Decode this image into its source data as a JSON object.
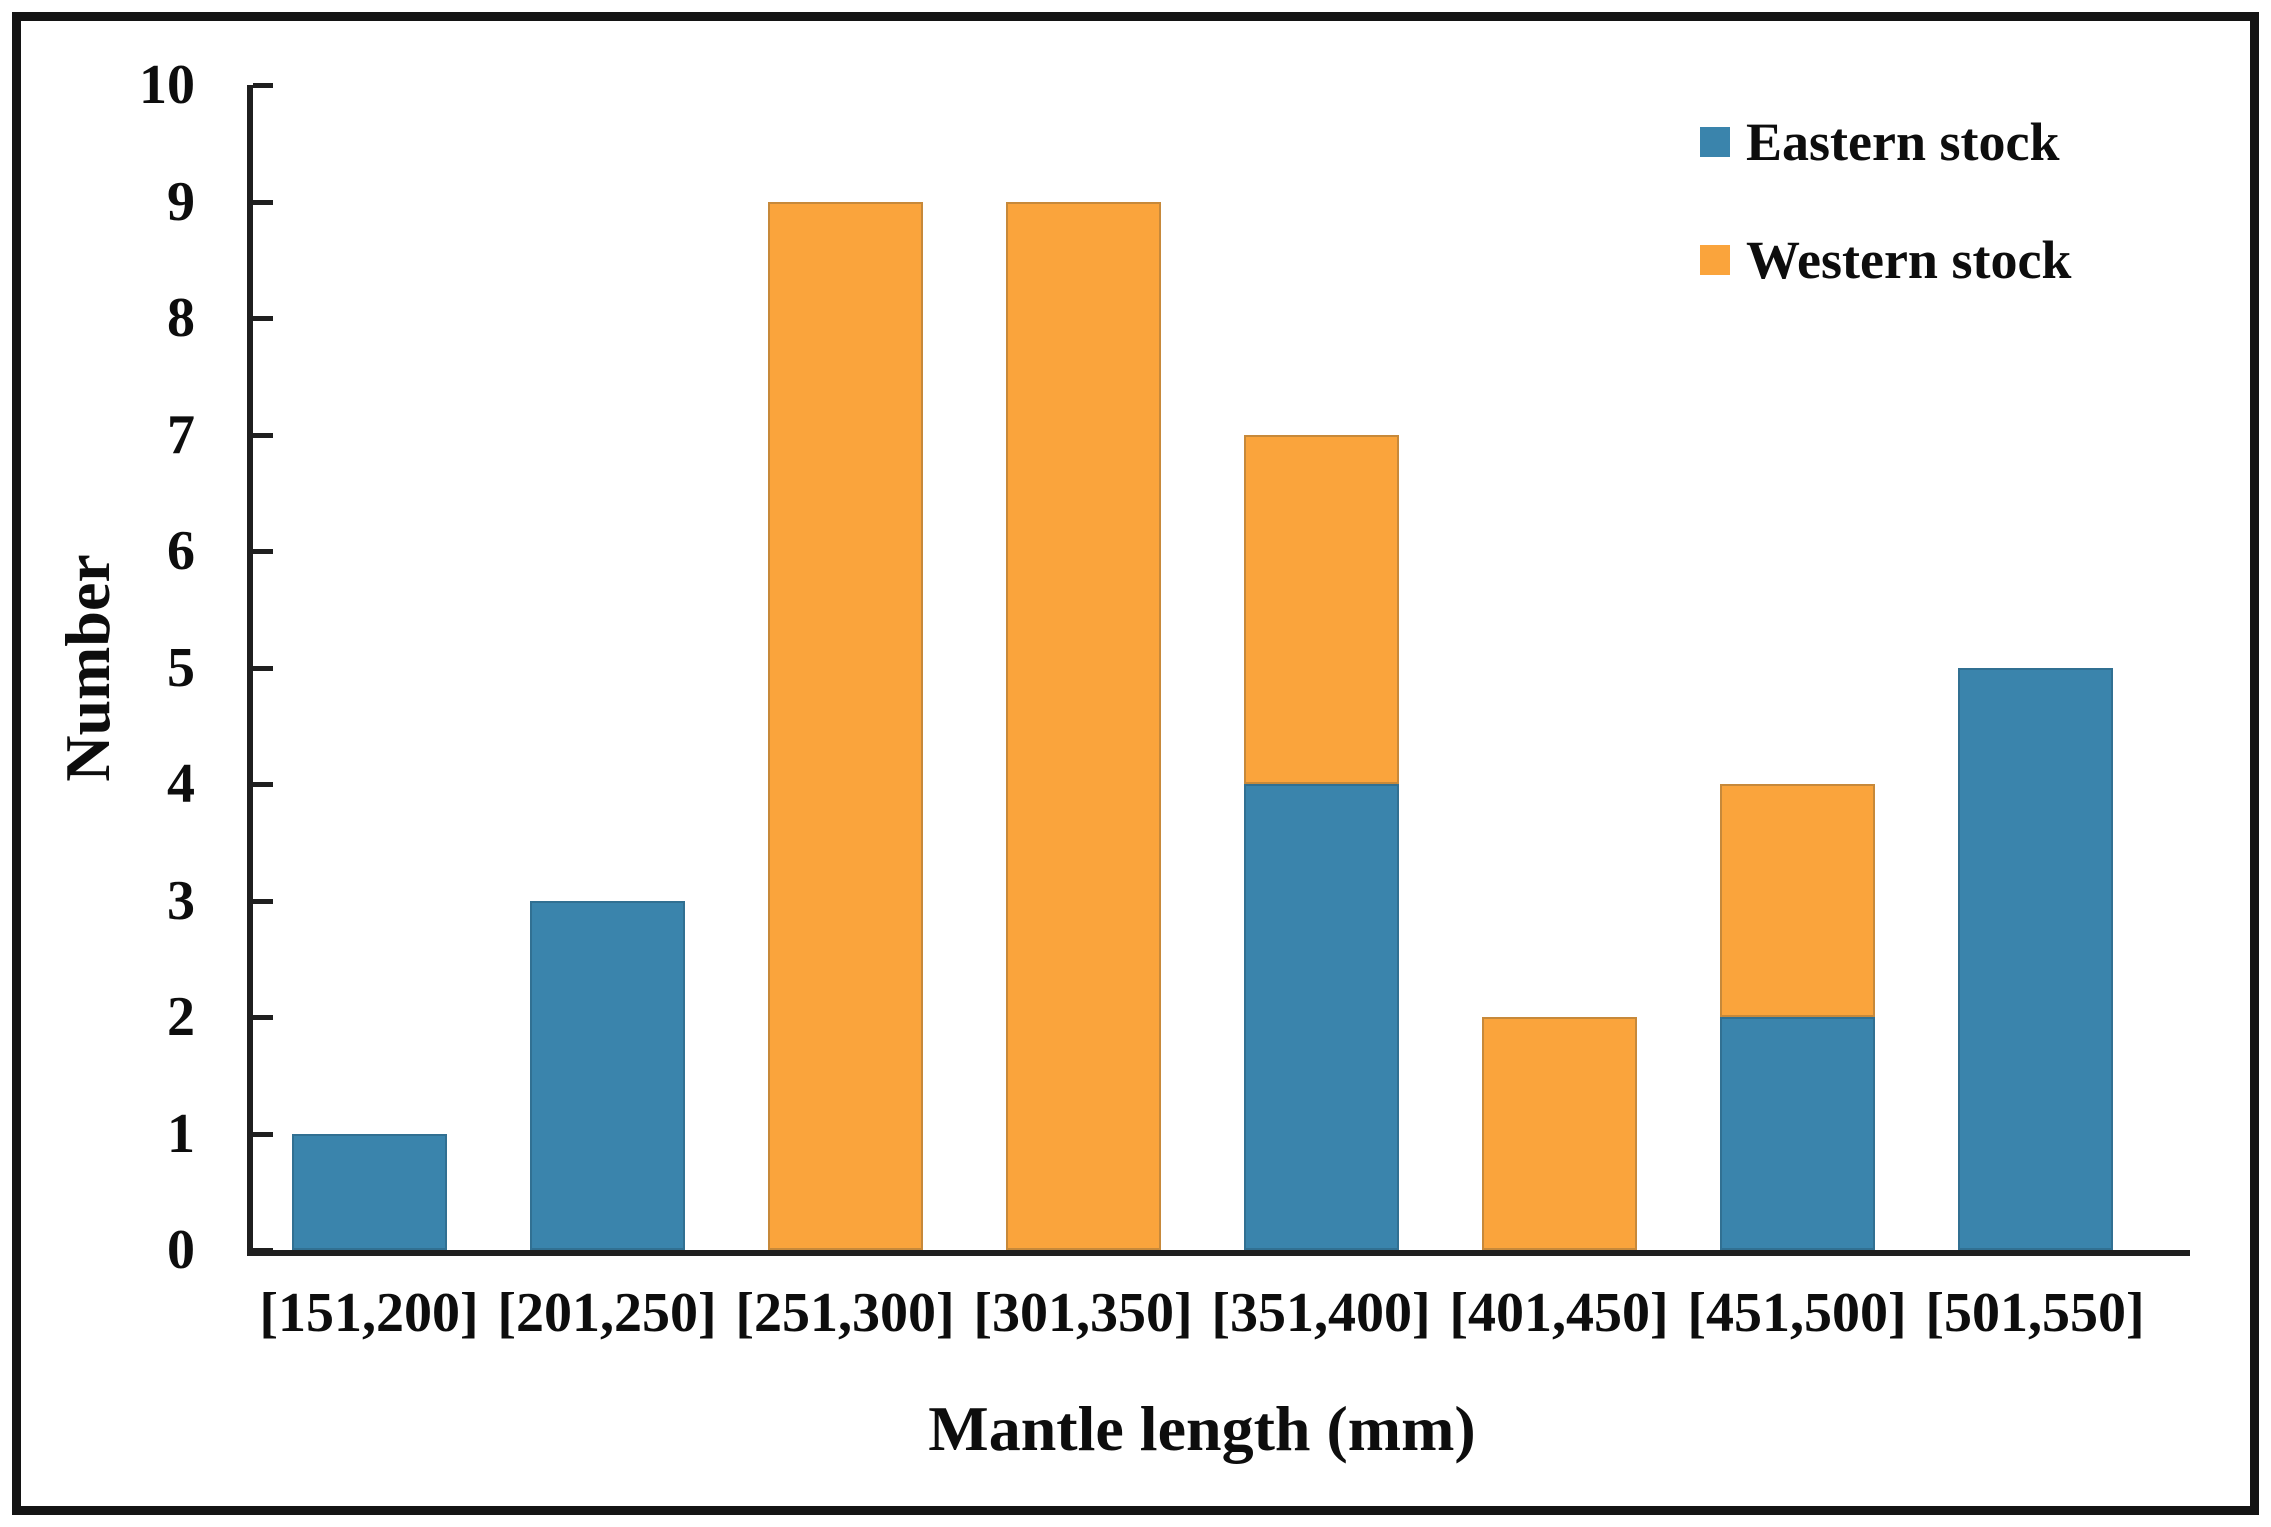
{
  "chart_data": {
    "type": "bar",
    "stacked": true,
    "title": "",
    "xlabel": "Mantle length (mm)",
    "ylabel": "Number",
    "categories": [
      "[151,200]",
      "[201,250]",
      "[251,300]",
      "[301,350]",
      "[351,400]",
      "[401,450]",
      "[451,500]",
      "[501,550]"
    ],
    "series": [
      {
        "name": "Eastern stock",
        "color": "#3A84AC",
        "values": [
          1,
          3,
          0,
          0,
          4,
          0,
          2,
          5
        ]
      },
      {
        "name": "Western stock",
        "color": "#FAA43C",
        "values": [
          0,
          0,
          9,
          9,
          3,
          2,
          2,
          0
        ]
      }
    ],
    "ylim": [
      0,
      10
    ],
    "yticks": [
      0,
      1,
      2,
      3,
      4,
      5,
      6,
      7,
      8,
      9,
      10
    ],
    "grid": false,
    "legend_position": "top-right",
    "axis_color": "#1f1f1f",
    "frame_color": "#141414"
  }
}
